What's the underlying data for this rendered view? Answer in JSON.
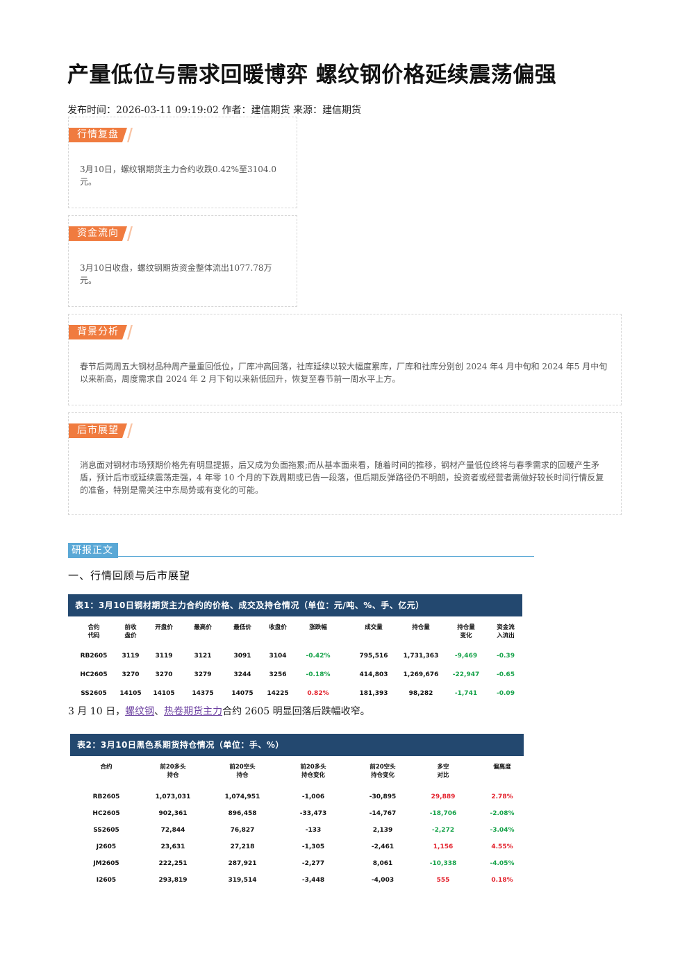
{
  "article": {
    "title": "产量低位与需求回暖博弈 螺纹钢价格延续震荡偏强",
    "meta": "发布时间：2026-03-11 09:19:02 作者：建信期货 来源：建信期货"
  },
  "sections": [
    {
      "label": "行情复盘",
      "text": "3月10日，螺纹钢期货主力合约收跌0.42%至3104.0元。"
    },
    {
      "label": "资金流向",
      "text": "3月10日收盘，螺纹钢期货资金整体流出1077.78万元。"
    },
    {
      "label": "背景分析",
      "text": "春节后两周五大钢材品种周产量重回低位，厂库冲高回落，社库延续以较大幅度累库，厂库和社库分别创 2024 年4 月中旬和 2024 年5 月中旬以来新高，周度需求自 2024 年 2 月下旬以来新低回升，恢复至春节前一周水平上方。"
    },
    {
      "label": "后市展望",
      "text": "消息面对钢材市场预期价格先有明显提振，后又成为负面拖累;而从基本面来看，随着时间的推移，钢材产量低位终将与春季需求的回暖产生矛盾，预计后市或延续震荡走强，4 年零 10 个月的下跌周期或已告一段落，但后期反弹路径仍不明朗，投资者或经营者需做好较长时间行情反复的准备，特别是需关注中东局势或有变化的可能。"
    }
  ],
  "report": {
    "tag": "研报正文",
    "heading": "一、行情回顾与后市展望",
    "sentence": {
      "prefix": "3 月 10 日，",
      "link1": "螺纹钢",
      "sep": "、",
      "link2": "热卷期货主力",
      "suffix": "合约 2605 明显回落后跌幅收窄。"
    }
  },
  "table1": {
    "title": "表1：3月10日钢材期货主力合约的价格、成交及持仓情况（单位：元/吨、%、手、亿元）",
    "headers": [
      "合约\n代码",
      "前收\n盘价",
      "开盘价",
      "最高价",
      "最低价",
      "收盘价",
      "涨跌幅",
      "成交量",
      "持仓量",
      "持仓量\n变化",
      "资金流\n入流出"
    ],
    "rows": [
      [
        "RB2605",
        "3119",
        "3119",
        "3121",
        "3091",
        "3104",
        "-0.42%",
        "795,516",
        "1,731,363",
        "-9,469",
        "-0.39"
      ],
      [
        "HC2605",
        "3270",
        "3270",
        "3279",
        "3244",
        "3256",
        "-0.18%",
        "414,803",
        "1,269,676",
        "-22,947",
        "-0.65"
      ],
      [
        "SS2605",
        "14105",
        "14105",
        "14375",
        "14075",
        "14225",
        "0.82%",
        "181,393",
        "98,282",
        "-1,741",
        "-0.09"
      ]
    ],
    "row_colors": [
      [
        "",
        "",
        "",
        "",
        "",
        "",
        "neg",
        "",
        "",
        "neg",
        "neg"
      ],
      [
        "",
        "",
        "",
        "",
        "",
        "",
        "neg",
        "",
        "",
        "neg",
        "neg"
      ],
      [
        "",
        "",
        "",
        "",
        "",
        "",
        "pos",
        "",
        "",
        "neg",
        "neg"
      ]
    ]
  },
  "table2": {
    "title": "表2：3月10日黑色系期货持仓情况（单位：手、%）",
    "headers": [
      "合约",
      "前20多头\n持仓",
      "前20空头\n持仓",
      "前20多头\n持仓变化",
      "前20空头\n持仓变化",
      "多空\n对比",
      "偏离度"
    ],
    "rows": [
      [
        "RB2605",
        "1,073,031",
        "1,074,951",
        "-1,006",
        "-30,895",
        "29,889",
        "2.78%"
      ],
      [
        "HC2605",
        "902,361",
        "896,458",
        "-33,473",
        "-14,767",
        "-18,706",
        "-2.08%"
      ],
      [
        "SS2605",
        "72,844",
        "76,827",
        "-133",
        "2,139",
        "-2,272",
        "-3.04%"
      ],
      [
        "J2605",
        "23,631",
        "27,218",
        "-1,305",
        "-2,461",
        "1,156",
        "4.55%"
      ],
      [
        "JM2605",
        "222,251",
        "287,921",
        "-2,277",
        "8,061",
        "-10,338",
        "-4.05%"
      ],
      [
        "I2605",
        "293,819",
        "319,514",
        "-3,448",
        "-4,003",
        "555",
        "0.18%"
      ]
    ],
    "row_colors": [
      [
        "",
        "",
        "",
        "",
        "",
        "pos",
        "pos"
      ],
      [
        "",
        "",
        "",
        "",
        "",
        "neg",
        "neg"
      ],
      [
        "",
        "",
        "",
        "",
        "",
        "neg",
        "neg"
      ],
      [
        "",
        "",
        "",
        "",
        "",
        "pos",
        "pos"
      ],
      [
        "",
        "",
        "",
        "",
        "",
        "neg",
        "neg"
      ],
      [
        "",
        "",
        "",
        "",
        "",
        "pos",
        "pos"
      ]
    ]
  },
  "colors": {
    "tag": "#f07b3f",
    "table_header": "#23486f",
    "report_tag": "#5aa8d6",
    "down": "#17a34a",
    "up": "#e3202b"
  }
}
